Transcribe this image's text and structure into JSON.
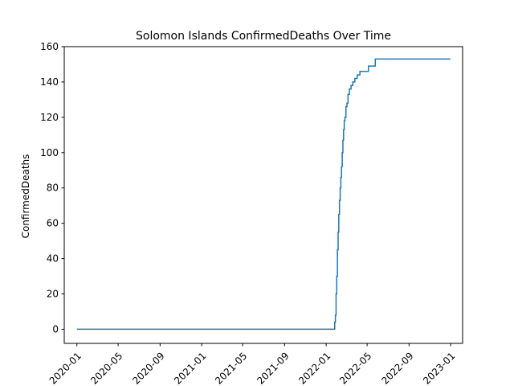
{
  "chart_data": {
    "type": "line",
    "title": "Solomon Islands  ConfirmedDeaths Over Time",
    "xlabel": "",
    "ylabel": "ConfirmedDeaths",
    "xlim": [
      "2019-11-25",
      "2023-02-05"
    ],
    "ylim": [
      -8,
      160
    ],
    "x_ticks": [
      "2020-01",
      "2020-05",
      "2020-09",
      "2021-01",
      "2021-05",
      "2021-09",
      "2022-01",
      "2022-05",
      "2022-09",
      "2023-01"
    ],
    "y_ticks": [
      0,
      20,
      40,
      60,
      80,
      100,
      120,
      140,
      160
    ],
    "grid": false,
    "colors": {
      "line": "#1f77b4"
    },
    "series": [
      {
        "x": [
          "2020-01-01",
          "2022-01-25",
          "2022-01-26",
          "2022-01-28",
          "2022-01-30",
          "2022-02-01",
          "2022-02-03",
          "2022-02-05",
          "2022-02-07",
          "2022-02-09",
          "2022-02-11",
          "2022-02-13",
          "2022-02-15",
          "2022-02-17",
          "2022-02-19",
          "2022-02-21",
          "2022-02-23",
          "2022-02-25",
          "2022-02-28",
          "2022-03-03",
          "2022-03-06",
          "2022-03-10",
          "2022-03-15",
          "2022-03-20",
          "2022-03-26",
          "2022-04-02",
          "2022-04-10",
          "2022-04-20",
          "2022-05-05",
          "2022-05-25",
          "2022-06-10",
          "2022-12-31"
        ],
        "y": [
          0,
          0,
          4,
          8,
          20,
          30,
          45,
          55,
          65,
          73,
          80,
          86,
          92,
          100,
          107,
          113,
          118,
          120,
          126,
          128,
          133,
          136,
          138,
          140,
          142,
          144,
          146,
          146,
          149,
          153,
          153,
          153
        ]
      }
    ]
  }
}
